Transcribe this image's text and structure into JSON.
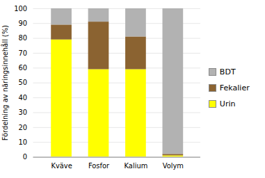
{
  "chart_data": {
    "type": "bar",
    "stacked": true,
    "categories": [
      "Kväve",
      "Fosfor",
      "Kalium",
      "Volym"
    ],
    "series": [
      {
        "name": "Urin",
        "color": "#ffff00",
        "values": [
          79,
          59,
          59,
          1
        ]
      },
      {
        "name": "Fekalier",
        "color": "#8B6331",
        "values": [
          10,
          32,
          22,
          1
        ]
      },
      {
        "name": "BDT",
        "color": "#b2b2b2",
        "values": [
          11,
          9,
          19,
          98
        ]
      }
    ],
    "ylabel": "Fördelning av näringsinnehåll (%)",
    "ylim": [
      0,
      100
    ],
    "yticks": [
      0,
      10,
      20,
      30,
      40,
      50,
      60,
      70,
      80,
      90,
      100
    ],
    "grid": true,
    "legend": "right"
  }
}
